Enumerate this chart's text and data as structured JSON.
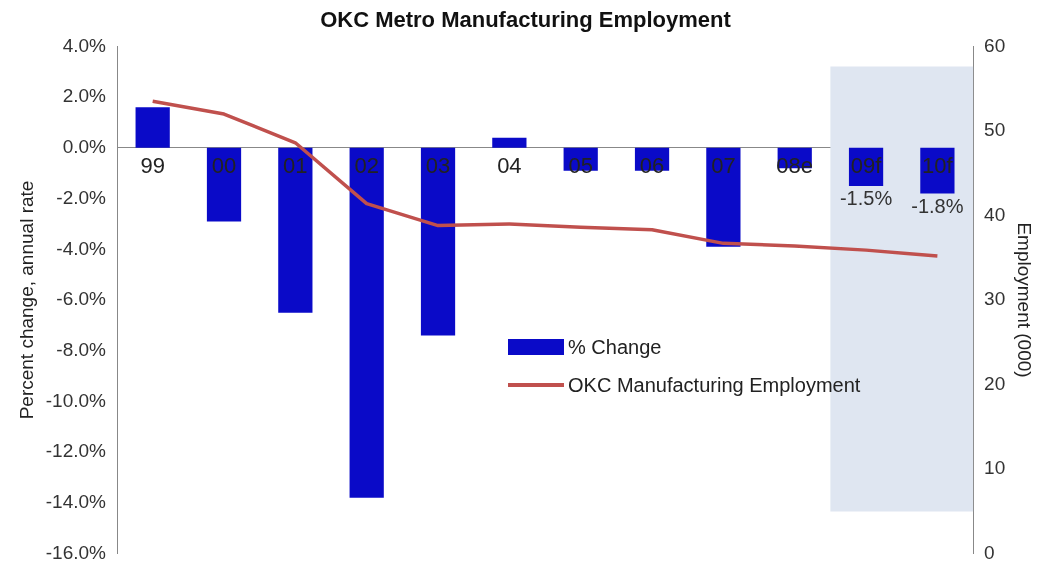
{
  "chart_data": {
    "type": "bar",
    "title": "OKC Metro Manufacturing Employment",
    "ylabel": "Percent change, annual rate",
    "y2label": "Employment (000)",
    "categories": [
      "99",
      "00",
      "01",
      "02",
      "03",
      "04",
      "05",
      "06",
      "07",
      "08e",
      "09f",
      "10f"
    ],
    "series": [
      {
        "name": "% Change",
        "color": "#0a0ac8",
        "values": [
          1.6,
          -2.9,
          -6.5,
          -13.8,
          -7.4,
          0.4,
          -0.9,
          -0.9,
          -3.9,
          -0.8,
          -1.5,
          -1.8
        ],
        "value_labels": [
          null,
          null,
          null,
          null,
          null,
          null,
          null,
          null,
          null,
          null,
          "-1.5%",
          "-1.8%"
        ]
      },
      {
        "name": "OKC Manufacturing Employment",
        "type": "line",
        "axis": "y2",
        "color": "#c0504d",
        "values": [
          53.5,
          52,
          48.6,
          41.4,
          38.8,
          39,
          38.6,
          38.3,
          36.7,
          36.4,
          35.9,
          35.2
        ]
      }
    ],
    "ylim": [
      -16,
      4
    ],
    "yticks": [
      {
        "value": 4,
        "label": "4.0%"
      },
      {
        "value": 2,
        "label": "2.0%"
      },
      {
        "value": 0,
        "label": "0.0%"
      },
      {
        "value": -2,
        "label": "-2.0%"
      },
      {
        "value": -4,
        "label": "-4.0%"
      },
      {
        "value": -6,
        "label": "-6.0%"
      },
      {
        "value": -8,
        "label": "-8.0%"
      },
      {
        "value": -10,
        "label": "-10.0%"
      },
      {
        "value": -12,
        "label": "-12.0%"
      },
      {
        "value": -14,
        "label": "-14.0%"
      },
      {
        "value": -16,
        "label": "-16.0%"
      }
    ],
    "y2lim": [
      0,
      60
    ],
    "y2ticks": [
      0,
      10,
      20,
      30,
      40,
      50,
      60
    ],
    "bands": [
      {
        "axis": "x",
        "from": "09f",
        "to": "10f",
        "color": "#dfe6f1"
      }
    ],
    "legend": "center",
    "grid": false,
    "marker": "none"
  }
}
